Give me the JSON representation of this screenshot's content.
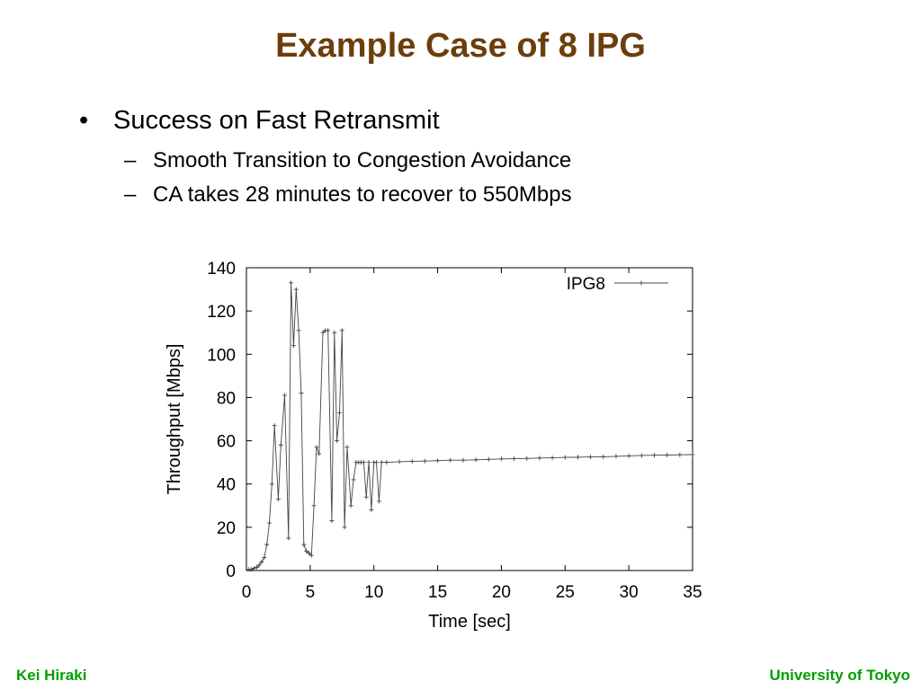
{
  "slide": {
    "title": "Example Case of 8 IPG",
    "bullets": [
      {
        "text": "Success on Fast Retransmit",
        "marker": "•",
        "sub": [
          {
            "text": "Smooth Transition to Congestion Avoidance",
            "marker": "–"
          },
          {
            "text": "CA takes 28 minutes to recover to 550Mbps",
            "marker": "–"
          }
        ]
      }
    ]
  },
  "footer": {
    "left": "Kei Hiraki",
    "right": "University of Tokyo",
    "color": "#00a000"
  },
  "colors": {
    "title": "#6b3e0c",
    "series": "#444444"
  },
  "chart_data": {
    "type": "line",
    "xlabel": "Time [sec]",
    "ylabel": "Throughput [Mbps]",
    "xlim": [
      0,
      35
    ],
    "ylim": [
      0,
      140
    ],
    "xticks": [
      0,
      5,
      10,
      15,
      20,
      25,
      30,
      35
    ],
    "yticks": [
      0,
      20,
      40,
      60,
      80,
      100,
      120,
      140
    ],
    "grid": false,
    "legend_position": "top-right",
    "series": [
      {
        "name": "IPG8",
        "marker": "+",
        "points": [
          [
            0.2,
            0.5
          ],
          [
            0.4,
            0.5
          ],
          [
            0.6,
            1
          ],
          [
            0.8,
            1.5
          ],
          [
            1.0,
            2.5
          ],
          [
            1.2,
            4
          ],
          [
            1.4,
            6
          ],
          [
            1.6,
            12
          ],
          [
            1.8,
            22
          ],
          [
            2.0,
            40
          ],
          [
            2.2,
            67
          ],
          [
            2.5,
            33
          ],
          [
            2.7,
            58
          ],
          [
            3.0,
            81
          ],
          [
            3.3,
            15
          ],
          [
            3.5,
            133
          ],
          [
            3.7,
            104
          ],
          [
            3.9,
            130
          ],
          [
            4.1,
            111
          ],
          [
            4.3,
            82
          ],
          [
            4.5,
            12
          ],
          [
            4.7,
            9
          ],
          [
            4.9,
            8
          ],
          [
            5.1,
            7
          ],
          [
            5.3,
            30
          ],
          [
            5.5,
            57
          ],
          [
            5.7,
            54
          ],
          [
            6.0,
            110
          ],
          [
            6.2,
            111
          ],
          [
            6.4,
            111
          ],
          [
            6.7,
            23
          ],
          [
            6.9,
            110
          ],
          [
            7.1,
            60
          ],
          [
            7.3,
            73
          ],
          [
            7.5,
            111
          ],
          [
            7.7,
            20
          ],
          [
            7.9,
            57
          ],
          [
            8.2,
            30
          ],
          [
            8.4,
            42
          ],
          [
            8.6,
            50
          ],
          [
            8.8,
            50
          ],
          [
            9.0,
            50
          ],
          [
            9.2,
            50
          ],
          [
            9.4,
            34
          ],
          [
            9.6,
            50
          ],
          [
            9.8,
            28
          ],
          [
            10.0,
            50
          ],
          [
            10.2,
            50
          ],
          [
            10.4,
            32
          ],
          [
            10.6,
            50
          ],
          [
            11.0,
            50
          ],
          [
            12.0,
            50.3
          ],
          [
            13.0,
            50.5
          ],
          [
            14.0,
            50.6
          ],
          [
            15.0,
            50.8
          ],
          [
            16.0,
            51
          ],
          [
            17.0,
            51
          ],
          [
            18.0,
            51.2
          ],
          [
            19.0,
            51.4
          ],
          [
            20.0,
            51.6
          ],
          [
            21.0,
            51.7
          ],
          [
            22.0,
            51.8
          ],
          [
            23.0,
            52
          ],
          [
            24.0,
            52.1
          ],
          [
            25.0,
            52.3
          ],
          [
            26.0,
            52.4
          ],
          [
            27.0,
            52.5
          ],
          [
            28.0,
            52.6
          ],
          [
            29.0,
            52.8
          ],
          [
            30.0,
            53
          ],
          [
            31.0,
            53.2
          ],
          [
            32.0,
            53.3
          ],
          [
            33.0,
            53.4
          ],
          [
            34.0,
            53.5
          ],
          [
            35.0,
            53.6
          ]
        ]
      }
    ]
  }
}
